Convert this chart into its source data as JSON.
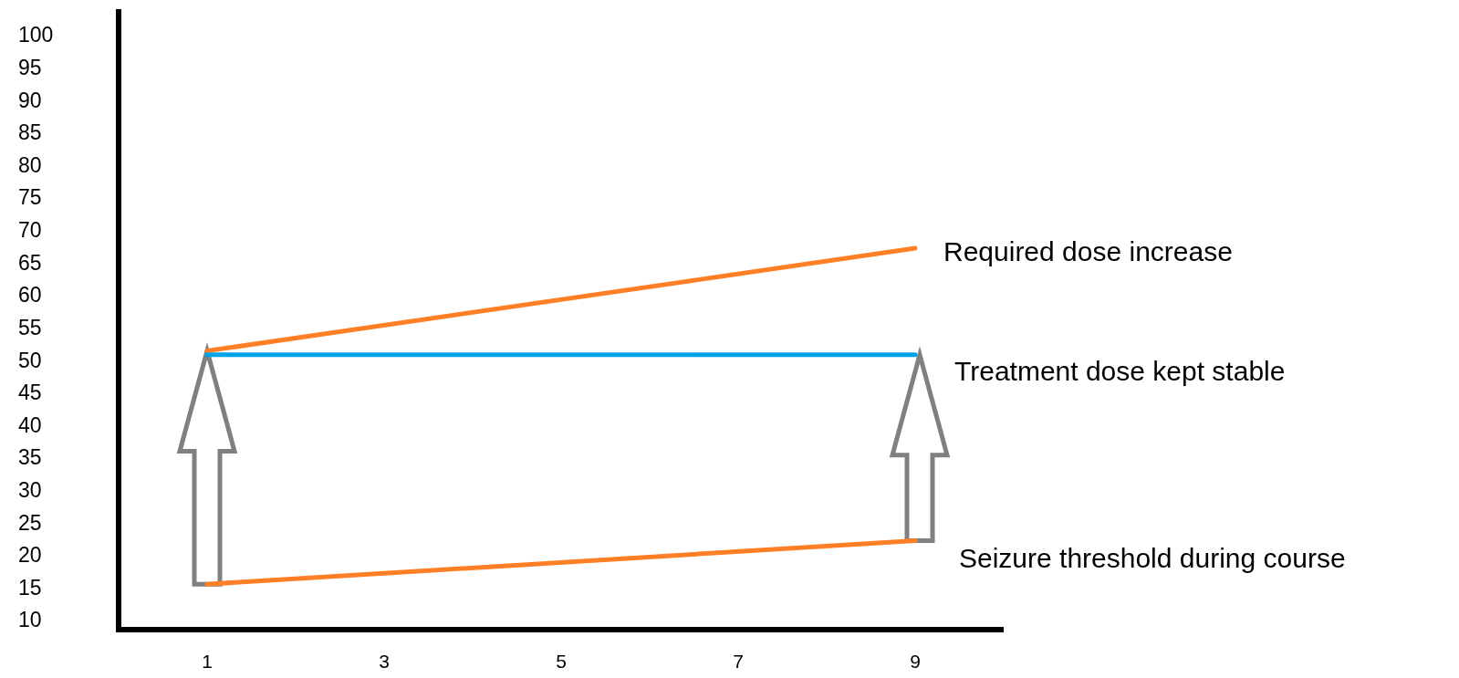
{
  "chart_data": {
    "type": "line",
    "x": [
      1,
      9
    ],
    "xlim": [
      0,
      10
    ],
    "xticks": [
      1,
      3,
      5,
      7,
      9
    ],
    "ylim": [
      8.5,
      104
    ],
    "yticks": [
      10,
      15,
      20,
      25,
      30,
      35,
      40,
      45,
      50,
      55,
      60,
      65,
      70,
      75,
      80,
      85,
      90,
      95,
      100
    ],
    "grid": false,
    "line_style": "solid",
    "series": [
      {
        "name": "Required dose increase",
        "color": "#ff7f27",
        "values": [
          51.4,
          67.2
        ]
      },
      {
        "name": "Treatment dose kept stable",
        "color": "#00a2e8",
        "values": [
          50.8,
          50.8
        ]
      },
      {
        "name": "Seizure threshold during course",
        "color": "#ff7f27",
        "values": [
          15.5,
          22.2
        ]
      }
    ]
  }
}
